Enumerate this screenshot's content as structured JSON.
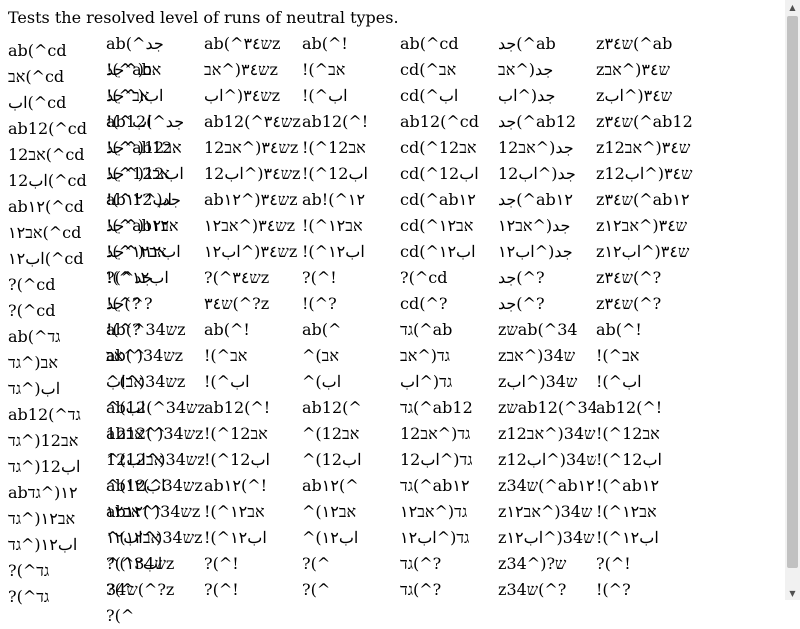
{
  "header": {
    "text": "Tests the resolved level of runs of neutral types."
  },
  "left_column": [
    "ab(^cd",
    "אב(^cd",
    "اب(^cd",
    "ab12(^cd",
    "אב12(^cd",
    "اب12(^cd",
    "ab١٢(^cd",
    "אב١٢(^cd",
    "اب١٢(^cd",
    "?(^cd",
    "?(^cd",
    "ab(^גד",
    "אב(^גד",
    "اب(^גד",
    "ab12(^גד",
    "אב12(^גד",
    "اب12(^גד",
    "ab١٢(^גד",
    "אב١٢(^גד",
    "اب١٢(^גד",
    "?(^גד",
    "?(^גד"
  ],
  "grid": [
    [
      "ab(^جد",
      "ab(^ש٣٤z",
      "ab(^!",
      "ab(^cd",
      "جد(^ab",
      "zש٣٤(^ab",
      "!(^ab"
    ],
    [
      "אב(^جد",
      "ש٣٤(^אבz",
      "!(^אב",
      "cd(^אב",
      "جد(^אב",
      "zש٣٤(^אב",
      "!(^אב"
    ],
    [
      "اب(^جد",
      "ש٣٤(^ابz",
      "!(^اب",
      "cd(^اب",
      "جد(^اب",
      "zש٣٤(^اب",
      "!(^اب"
    ],
    [
      "ab12(^جد",
      "ab12(^ש٣٤z",
      "ab12(^!",
      "ab12(^cd",
      "جد(^ab12",
      "zש٣٤(^ab12",
      "!(^ab12"
    ],
    [
      "אב12(^جد",
      "ש٣٤(^אב12z",
      "!(^אב12",
      "cd(^אב12",
      "جد(^אב12",
      "zש٣٤(^אב12",
      "!(^אב12"
    ],
    [
      "اب12(^جد",
      "ש٣٤(^اب12z",
      "!(^اب12",
      "cd(^اب12",
      "جد(^اب12",
      "zש٣٤(^اب12",
      "!(^اب12"
    ],
    [
      "abجد(^١٢",
      "abש٣٤(^١٢z",
      "ab!(^١٢",
      "cd(^ab١٢",
      "جد(^ab١٢",
      "zש٣٤(^ab١٢",
      "!(^ab١٢"
    ],
    [
      "אב١٢(^جد",
      "ש٣٤(^אב١٢z",
      "!(^אב١٢",
      "cd(^אב١٢",
      "جد(^אב١٢",
      "zש٣٤(^אב١٢",
      "!(^אב١٢"
    ],
    [
      "اب١٢(^جد",
      "ש٣٤(^اب١٢z",
      "!(^اب١٢",
      "cd(^اب١٢",
      "جد(^اب١٢",
      "zש٣٤(^اب١٢",
      "!(^اب١٢"
    ],
    [
      "?(^جد",
      "?(^ש٣٤z",
      "?(^!",
      "?(^cd",
      "جد(^?",
      "zש٣٤(^?",
      "!(^?"
    ],
    [
      "جد(^?",
      "ש٣٤(^?z",
      "!(^?",
      "cd(^?",
      "جد(^?",
      "zש٣٤(^?",
      "!(^?"
    ],
    [
      "ab(^34שz",
      "ab(^!",
      "ab(^",
      "גד(^ab",
      "zשab(^34",
      "ab(^!",
      "ab(^"
    ],
    [
      "ש34(^אבz",
      "!(^אב",
      "^(אב",
      "גד(^אב",
      "zש34(^אב",
      "!(^אב",
      "^(אב"
    ],
    [
      "ש34(^ابz",
      "!(^اب",
      "^(اب",
      "גד(^اب",
      "zש34(^اب",
      "!(^اب",
      "^(اب"
    ],
    [
      "ab12(^34שz",
      "ab12(^!",
      "ab12(^",
      "גד(^ab12",
      "zשab12(^34",
      "ab12(^!",
      "ab12(^"
    ],
    [
      "ש34(^אב12z",
      "!(^אב12",
      "^(אב12",
      "גד(^אב12",
      "zש34(^אב12",
      "!(^אב12",
      "^(אב12"
    ],
    [
      "ש34(^اب12z",
      "!(^اب12",
      "^(اب12",
      "גד(^اب12",
      "zש34(^اب12",
      "!(^اب12",
      "^(اب12"
    ],
    [
      "ab١٢(^34שz",
      "ab١٢(^!",
      "ab١٢(^",
      "גד(^ab١٢",
      "zש34(^ab١٢",
      "!(^ab١٢",
      "ab١٢(^"
    ],
    [
      "ש34(^אב١٢z",
      "!(^אב١٢",
      "^(אב١٢",
      "גד(^אב١٢",
      "zש34(^אב١٢",
      "!(^אב١٢",
      "^(אב١٢"
    ],
    [
      "ש34(^اب١٢z",
      "!(^اب١٢",
      "^(اب١٢",
      "גד(^اب١٢",
      "zש34(^اب١٢",
      "!(^اب١٢",
      "^(اب١٢"
    ],
    [
      "?(^34שz",
      "?(^!",
      "?(^",
      "גד(^?",
      "zש?(^34",
      "?(^!",
      "?(^"
    ],
    [
      "ש34(^?z",
      "?(^!",
      "?(^",
      "גד(^?",
      "zש34(^?",
      "!(^?",
      "?(^"
    ]
  ],
  "scrollbar": {
    "up_icon": "triangle-up",
    "down_icon": "triangle-down",
    "position": 0.0
  }
}
